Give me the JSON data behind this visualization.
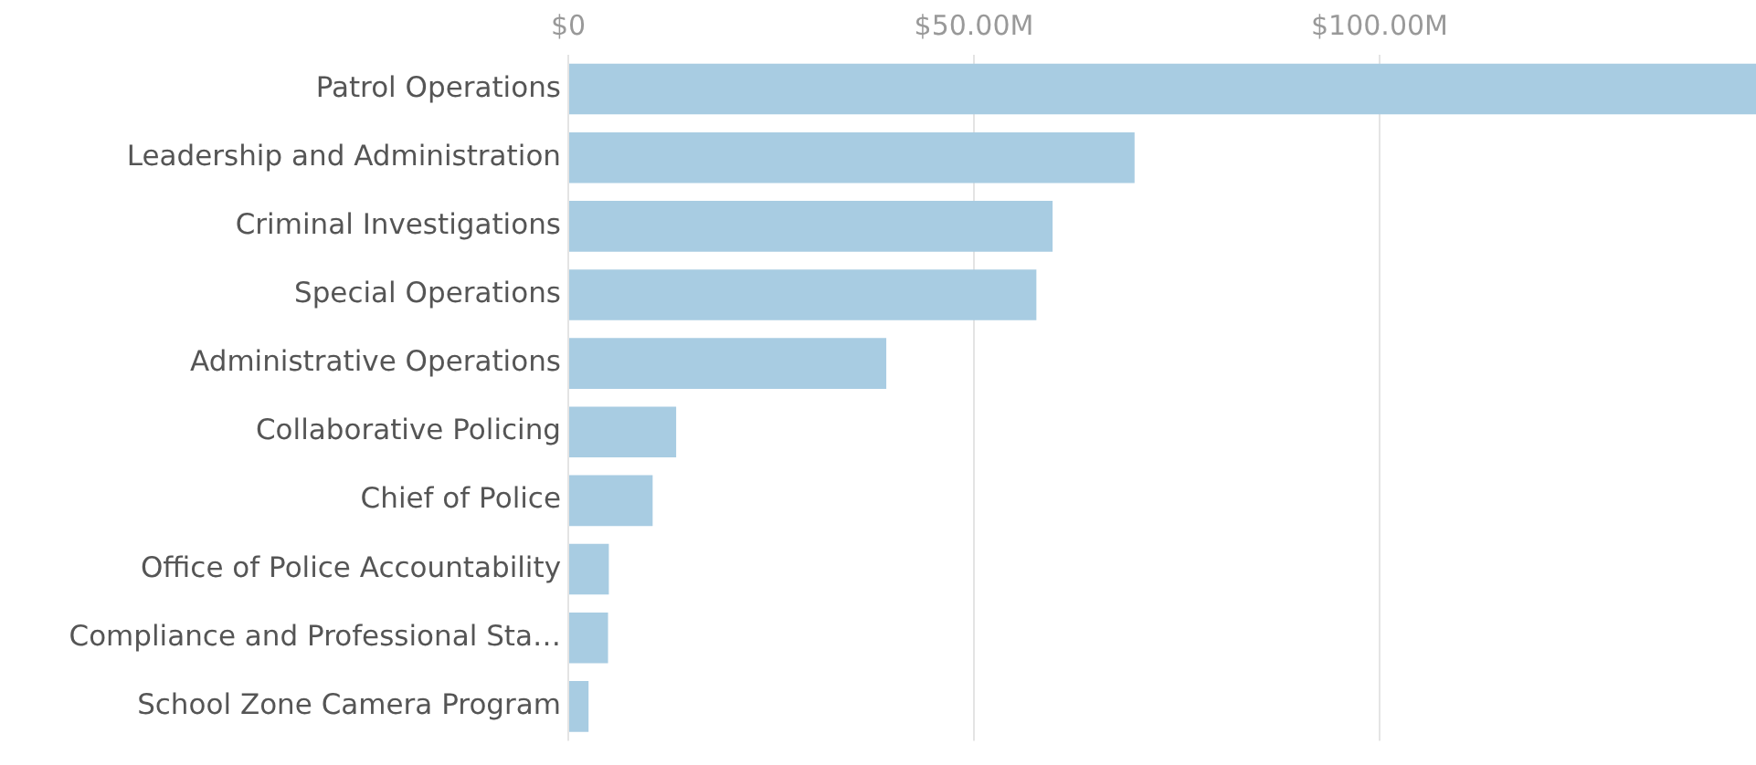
{
  "chart_data": {
    "type": "bar",
    "orientation": "horizontal",
    "categories": [
      "Patrol Operations",
      "Leadership and Administration",
      "Criminal Investigations",
      "Special Operations",
      "Administrative Operations",
      "Collaborative Policing",
      "Chief of Police",
      "Office of Police Accountability",
      "Compliance and Professional Sta…",
      "School Zone Camera Program"
    ],
    "values": [
      146.4,
      69.8,
      59.7,
      57.7,
      39.2,
      13.3,
      10.4,
      5.0,
      4.9,
      2.5
    ],
    "color": "#a8cce2",
    "xlim": [
      0,
      146.4
    ],
    "xticks": [
      {
        "value": 0,
        "label": "$0"
      },
      {
        "value": 50,
        "label": "$50.00M"
      },
      {
        "value": 100,
        "label": "$100.00M"
      }
    ],
    "grid": "x",
    "legend": false
  }
}
